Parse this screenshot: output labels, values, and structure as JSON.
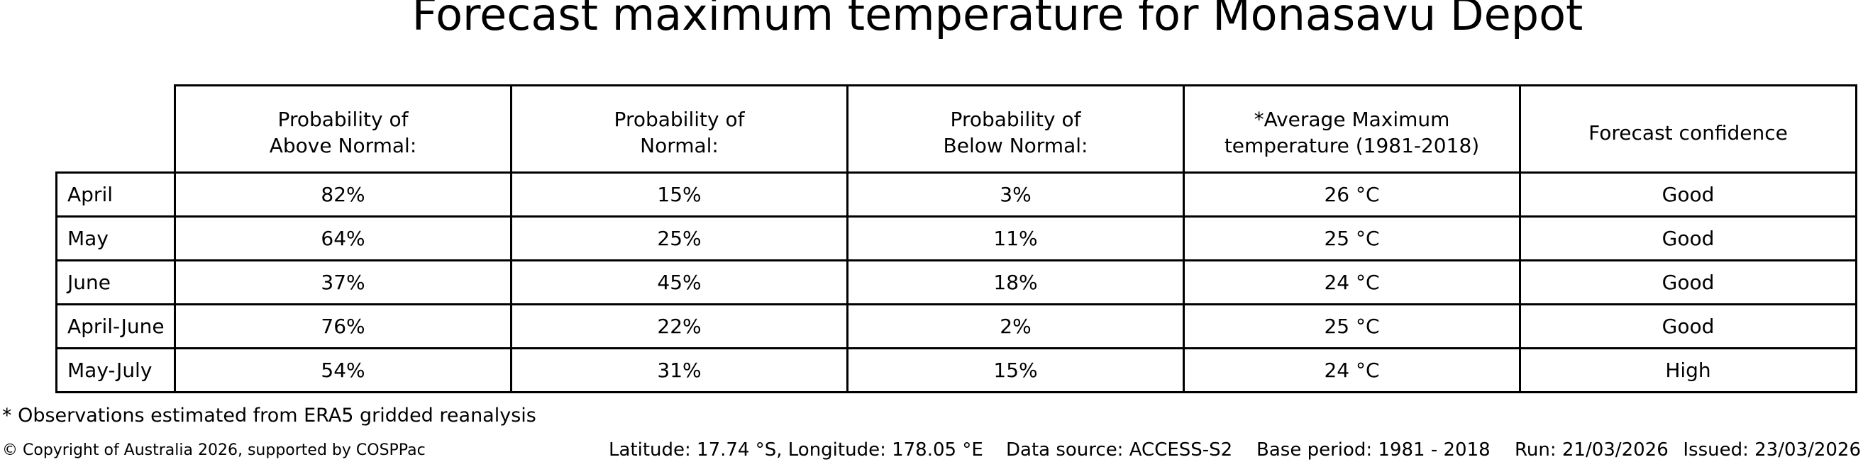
{
  "title": "Forecast maximum temperature for Monasavu Depot",
  "chart_data": {
    "type": "table",
    "title": "Forecast maximum temperature for Monasavu Depot",
    "column_headers": [
      {
        "lines": []
      },
      {
        "lines": [
          "Probability of",
          "Above Normal:"
        ]
      },
      {
        "lines": [
          "Probability of",
          "Normal:"
        ]
      },
      {
        "lines": [
          "Probability of",
          "Below Normal:"
        ]
      },
      {
        "lines": [
          "*Average Maximum",
          "temperature (1981-2018)"
        ]
      },
      {
        "lines": [
          "Forecast confidence"
        ]
      }
    ],
    "rows": [
      {
        "label": "April",
        "cells": [
          "82%",
          "15%",
          "3%",
          "26 °C",
          "Good"
        ]
      },
      {
        "label": "May",
        "cells": [
          "64%",
          "25%",
          "11%",
          "25 °C",
          "Good"
        ]
      },
      {
        "label": "June",
        "cells": [
          "37%",
          "45%",
          "18%",
          "24 °C",
          "Good"
        ]
      },
      {
        "label": "April-June",
        "cells": [
          "76%",
          "22%",
          "2%",
          "25 °C",
          "Good"
        ]
      },
      {
        "label": "May-July",
        "cells": [
          "54%",
          "31%",
          "15%",
          "24 °C",
          "High"
        ]
      }
    ]
  },
  "footnote": "* Observations estimated from ERA5 gridded reanalysis",
  "footer": {
    "copyright": "© Copyright of Australia 2026, supported by COSPPac",
    "location": "Latitude: 17.74 °S, Longitude: 178.05 °E",
    "data_source": "Data source: ACCESS-S2",
    "base_period": "Base period: 1981 - 2018",
    "run": "Run: 21/03/2026",
    "issued": "Issued: 23/03/2026"
  },
  "colors": {
    "text": "#000000",
    "border": "#000000",
    "background": "#ffffff"
  }
}
